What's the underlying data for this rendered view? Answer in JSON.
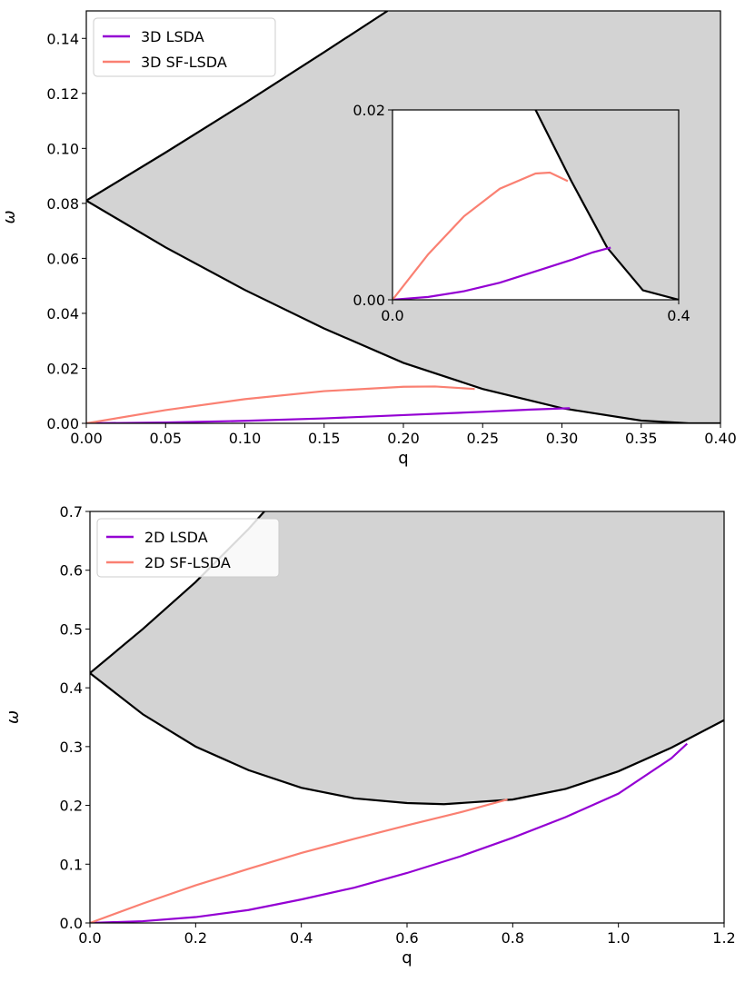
{
  "chart_data": [
    {
      "type": "line",
      "id": "top",
      "title": "",
      "xlabel": "q",
      "ylabel": "ω",
      "xlim": [
        0,
        0.4
      ],
      "ylim": [
        0,
        0.15
      ],
      "xticks": [
        "0.00",
        "0.05",
        "0.10",
        "0.15",
        "0.20",
        "0.25",
        "0.30",
        "0.35",
        "0.40"
      ],
      "yticks": [
        "0.00",
        "0.02",
        "0.04",
        "0.06",
        "0.08",
        "0.10",
        "0.12",
        "0.14"
      ],
      "continuum": {
        "color": "#d3d3d3",
        "upper": [
          [
            0,
            0.081
          ],
          [
            0.05,
            0.0985
          ],
          [
            0.1,
            0.1165
          ],
          [
            0.15,
            0.135
          ],
          [
            0.19,
            0.15
          ]
        ],
        "lower": [
          [
            0,
            0.081
          ],
          [
            0.05,
            0.064
          ],
          [
            0.1,
            0.0485
          ],
          [
            0.15,
            0.0345
          ],
          [
            0.2,
            0.022
          ],
          [
            0.25,
            0.0125
          ],
          [
            0.3,
            0.0055
          ],
          [
            0.35,
            0.001
          ],
          [
            0.38,
            0
          ],
          [
            0.4,
            0
          ]
        ]
      },
      "series": [
        {
          "name": "3D LSDA",
          "color": "#9400d3",
          "x": [
            0,
            0.05,
            0.1,
            0.15,
            0.2,
            0.25,
            0.28,
            0.3,
            0.305
          ],
          "y": [
            0,
            0.0003,
            0.0009,
            0.0018,
            0.003,
            0.0042,
            0.005,
            0.0054,
            0.0055
          ]
        },
        {
          "name": "3D SF-LSDA",
          "color": "#fa8072",
          "x": [
            0,
            0.05,
            0.1,
            0.15,
            0.2,
            0.22,
            0.245
          ],
          "y": [
            0,
            0.0048,
            0.0088,
            0.0117,
            0.0133,
            0.0134,
            0.0125
          ]
        }
      ],
      "legend": "top-left",
      "inset": {
        "xlim": [
          0,
          0.4
        ],
        "ylim": [
          0,
          0.02
        ],
        "xticks": [
          "0.0",
          "0.4"
        ],
        "yticks": [
          "0.00",
          "0.02"
        ],
        "upper_x": [
          0.2,
          0.25,
          0.3,
          0.35,
          0.4
        ],
        "upper_y": [
          0.02,
          0.0125,
          0.0055,
          0.001,
          0
        ]
      }
    },
    {
      "type": "line",
      "id": "bottom",
      "title": "",
      "xlabel": "q",
      "ylabel": "ω",
      "xlim": [
        0,
        1.2
      ],
      "ylim": [
        0,
        0.7
      ],
      "xticks": [
        "0.0",
        "0.2",
        "0.4",
        "0.6",
        "0.8",
        "1.0",
        "1.2"
      ],
      "yticks": [
        "0.0",
        "0.1",
        "0.2",
        "0.3",
        "0.4",
        "0.5",
        "0.6",
        "0.7"
      ],
      "continuum": {
        "color": "#d3d3d3",
        "upper": [
          [
            0,
            0.425
          ],
          [
            0.1,
            0.5
          ],
          [
            0.2,
            0.58
          ],
          [
            0.3,
            0.67
          ],
          [
            0.33,
            0.7
          ]
        ],
        "lower": [
          [
            0,
            0.425
          ],
          [
            0.1,
            0.355
          ],
          [
            0.2,
            0.3
          ],
          [
            0.3,
            0.26
          ],
          [
            0.4,
            0.23
          ],
          [
            0.5,
            0.212
          ],
          [
            0.6,
            0.204
          ],
          [
            0.67,
            0.202
          ],
          [
            0.8,
            0.21
          ],
          [
            0.9,
            0.228
          ],
          [
            1.0,
            0.258
          ],
          [
            1.1,
            0.298
          ],
          [
            1.2,
            0.345
          ]
        ]
      },
      "series": [
        {
          "name": "2D LSDA",
          "color": "#9400d3",
          "x": [
            0,
            0.1,
            0.2,
            0.3,
            0.4,
            0.5,
            0.6,
            0.7,
            0.8,
            0.9,
            1.0,
            1.1,
            1.13
          ],
          "y": [
            0,
            0.003,
            0.01,
            0.022,
            0.04,
            0.06,
            0.085,
            0.113,
            0.145,
            0.18,
            0.22,
            0.28,
            0.305
          ]
        },
        {
          "name": "2D SF-LSDA",
          "color": "#fa8072",
          "x": [
            0,
            0.1,
            0.2,
            0.3,
            0.4,
            0.5,
            0.6,
            0.7,
            0.79
          ],
          "y": [
            0,
            0.033,
            0.064,
            0.092,
            0.119,
            0.143,
            0.166,
            0.188,
            0.21
          ]
        }
      ],
      "legend": "top-left"
    }
  ]
}
